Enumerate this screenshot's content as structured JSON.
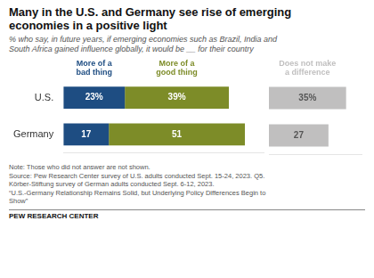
{
  "chart_data": [
    {
      "type": "bar",
      "orientation": "horizontal",
      "stacked": true,
      "title": "Many in the U.S. and Germany see rise of emerging\neconomies in a positive light",
      "subtitle": "% who say, in future years, if emerging economies such as Brazil, India and\nSouth Africa gained influence globally, it would be __ for their country",
      "note": "Note: Those who did not answer are not shown.\nSource: Pew Research Center survey of U.S. adults conducted Sept. 15-24, 2023. Q5.\nKörber-Stiftung survey of German adults conducted Sept. 6-12, 2023.\n“U.S.-Germany Relationship Remains Solid, but Underlying Policy Differences Begin to\nShow”",
      "footer": "PEW RESEARCH CENTER",
      "categories": [
        "U.S.",
        "Germany"
      ],
      "series": [
        {
          "name": "More of a\nbad thing",
          "color": "#1e4d82",
          "values": [
            23,
            17
          ],
          "value_labels": [
            "23%",
            "17"
          ]
        },
        {
          "name": "More of a\ngood thing",
          "color": "#7d8c28",
          "values": [
            39,
            51
          ],
          "value_labels": [
            "39%",
            "51"
          ]
        }
      ],
      "xlim": [
        0,
        75
      ],
      "grid": false,
      "data_labels": true,
      "tick_labels": "y"
    },
    {
      "type": "bar",
      "orientation": "horizontal",
      "categories": [
        "U.S.",
        "Germany"
      ],
      "series": [
        {
          "name": "Does not make\na difference",
          "color": "#c0bfbf",
          "values": [
            35,
            27
          ],
          "value_labels": [
            "35%",
            "27"
          ]
        }
      ],
      "xlim": [
        0,
        42
      ],
      "grid": false,
      "data_labels": true,
      "tick_labels": false
    }
  ]
}
